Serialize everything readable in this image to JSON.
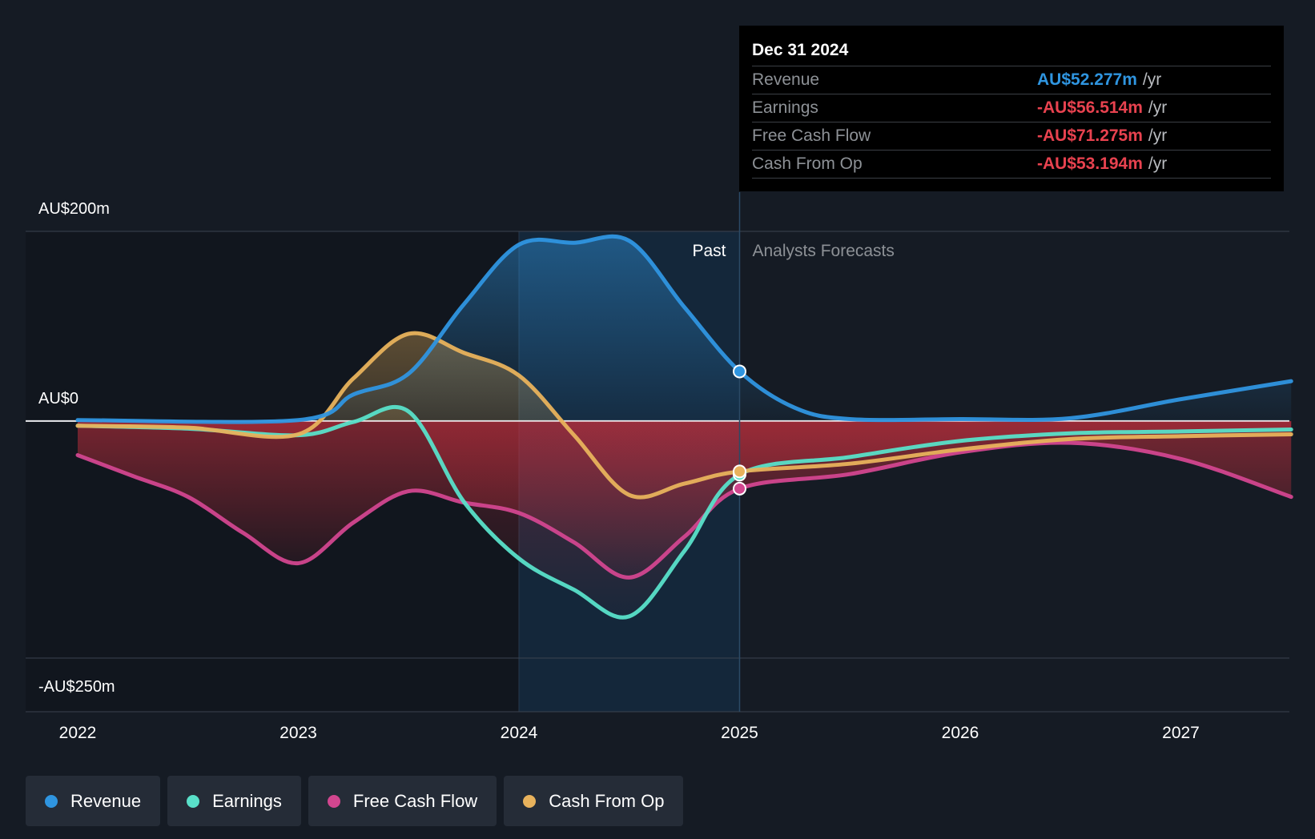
{
  "tooltip": {
    "date": "Dec 31 2024",
    "rows": [
      {
        "label": "Revenue",
        "value": "AU$52.277m",
        "unit": "/yr",
        "color": "#2f95e0"
      },
      {
        "label": "Earnings",
        "value": "-AU$56.514m",
        "unit": "/yr",
        "color": "#e8424f"
      },
      {
        "label": "Free Cash Flow",
        "value": "-AU$71.275m",
        "unit": "/yr",
        "color": "#e8424f"
      },
      {
        "label": "Cash From Op",
        "value": "-AU$53.194m",
        "unit": "/yr",
        "color": "#e8424f"
      }
    ]
  },
  "legend": [
    {
      "label": "Revenue",
      "color": "#2f95e0"
    },
    {
      "label": "Earnings",
      "color": "#59e0c9"
    },
    {
      "label": "Free Cash Flow",
      "color": "#d2468f"
    },
    {
      "label": "Cash From Op",
      "color": "#e8b25c"
    }
  ],
  "chart_data": {
    "type": "line",
    "ylim": [
      -250,
      200
    ],
    "y_ticks": [
      {
        "value": 200,
        "label": "AU$200m"
      },
      {
        "value": 0,
        "label": "AU$0"
      },
      {
        "value": -250,
        "label": "-AU$250m"
      }
    ],
    "x_ticks": [
      {
        "value": 2022,
        "label": "2022"
      },
      {
        "value": 2023,
        "label": "2023"
      },
      {
        "value": 2024,
        "label": "2024"
      },
      {
        "value": 2025,
        "label": "2025"
      },
      {
        "value": 2026,
        "label": "2026"
      },
      {
        "value": 2027,
        "label": "2027"
      }
    ],
    "xlim": [
      2021.77,
      2027.5
    ],
    "past_label": "Past",
    "forecast_label": "Analysts Forecasts",
    "past_end": 2025.0,
    "highlight_start": 2024.0,
    "series": [
      {
        "name": "Revenue",
        "color": "#2f95e0",
        "points": [
          [
            2022.0,
            1
          ],
          [
            2023.0,
            1
          ],
          [
            2023.25,
            28
          ],
          [
            2023.5,
            50
          ],
          [
            2023.75,
            123
          ],
          [
            2024.0,
            186
          ],
          [
            2024.25,
            188
          ],
          [
            2024.5,
            190
          ],
          [
            2024.75,
            120
          ],
          [
            2025.0,
            52.3
          ],
          [
            2025.25,
            14
          ],
          [
            2025.5,
            2
          ],
          [
            2026.0,
            2
          ],
          [
            2026.5,
            3
          ],
          [
            2027.0,
            23
          ],
          [
            2027.5,
            42
          ]
        ]
      },
      {
        "name": "Earnings",
        "color": "#59e0c9",
        "points": [
          [
            2022.0,
            -5
          ],
          [
            2022.5,
            -8
          ],
          [
            2023.0,
            -15
          ],
          [
            2023.25,
            -1
          ],
          [
            2023.5,
            10
          ],
          [
            2023.75,
            -85
          ],
          [
            2024.0,
            -145
          ],
          [
            2024.25,
            -178
          ],
          [
            2024.5,
            -206
          ],
          [
            2024.75,
            -137
          ],
          [
            2025.0,
            -56.5
          ],
          [
            2025.5,
            -38
          ],
          [
            2026.0,
            -21
          ],
          [
            2026.5,
            -13
          ],
          [
            2027.0,
            -11
          ],
          [
            2027.5,
            -9
          ]
        ]
      },
      {
        "name": "Free Cash Flow",
        "color": "#d2468f",
        "points": [
          [
            2022.0,
            -36
          ],
          [
            2022.25,
            -58
          ],
          [
            2022.5,
            -80
          ],
          [
            2022.75,
            -118
          ],
          [
            2023.0,
            -150
          ],
          [
            2023.25,
            -107
          ],
          [
            2023.5,
            -74
          ],
          [
            2023.75,
            -86
          ],
          [
            2024.0,
            -97
          ],
          [
            2024.25,
            -128
          ],
          [
            2024.5,
            -165
          ],
          [
            2024.75,
            -122
          ],
          [
            2025.0,
            -71.3
          ],
          [
            2025.5,
            -56
          ],
          [
            2026.0,
            -33
          ],
          [
            2026.5,
            -23
          ],
          [
            2027.0,
            -40
          ],
          [
            2027.5,
            -80
          ]
        ]
      },
      {
        "name": "Cash From Op",
        "color": "#e8b25c",
        "points": [
          [
            2022.0,
            -5
          ],
          [
            2022.5,
            -7
          ],
          [
            2023.0,
            -14
          ],
          [
            2023.25,
            45
          ],
          [
            2023.5,
            92
          ],
          [
            2023.75,
            72
          ],
          [
            2024.0,
            48
          ],
          [
            2024.25,
            -15
          ],
          [
            2024.5,
            -78
          ],
          [
            2024.75,
            -66
          ],
          [
            2025.0,
            -53.2
          ],
          [
            2025.5,
            -45
          ],
          [
            2026.0,
            -30
          ],
          [
            2026.5,
            -19
          ],
          [
            2027.0,
            -16
          ],
          [
            2027.5,
            -14
          ]
        ]
      }
    ]
  }
}
